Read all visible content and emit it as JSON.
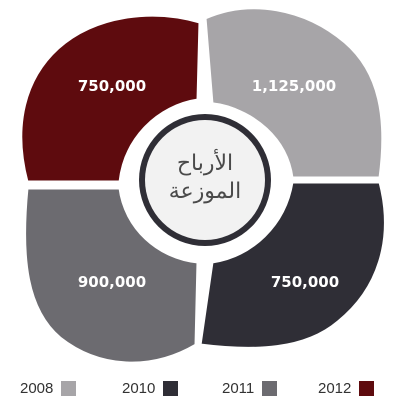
{
  "chart_data": {
    "type": "pie",
    "center_label": [
      "الأرباح",
      "الموزعة"
    ],
    "series": [
      {
        "name": "2008",
        "value": 1125000,
        "label": "1,125,000",
        "color": "#a7a5a8"
      },
      {
        "name": "2010",
        "value": 750000,
        "label": "750,000",
        "color": "#2f2e36"
      },
      {
        "name": "2011",
        "value": 900000,
        "label": "900,000",
        "color": "#6c6b70"
      },
      {
        "name": "2012",
        "value": 750000,
        "label": "750,000",
        "color": "#5e0b0e"
      }
    ],
    "legend_position": "bottom"
  }
}
